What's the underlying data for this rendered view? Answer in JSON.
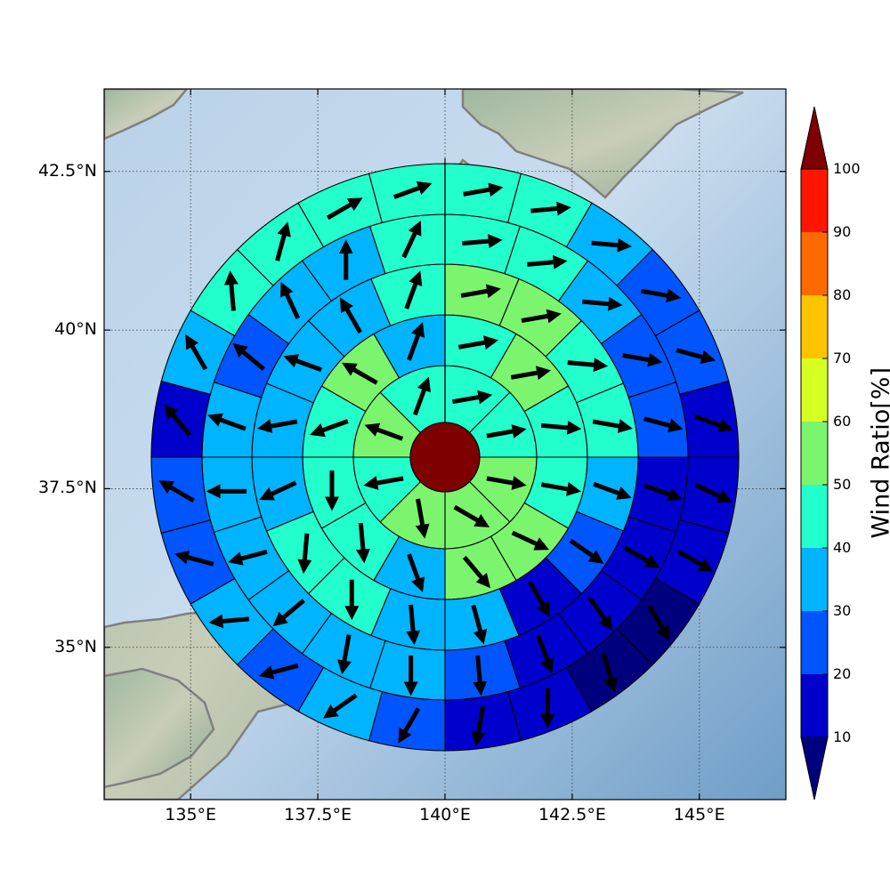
{
  "map": {
    "lon_ticks": [
      "135°E",
      "137.5°E",
      "140°E",
      "142.5°E",
      "145°E"
    ],
    "lat_ticks": [
      "42.5°N",
      "40°N",
      "37.5°N",
      "35°N"
    ],
    "lon_range": [
      133.3,
      146.7
    ],
    "lat_range": [
      32.6,
      43.8
    ],
    "lon_tick_values": [
      135,
      137.5,
      140,
      142.5,
      145
    ],
    "lat_tick_values": [
      42.5,
      40,
      37.5,
      35
    ],
    "grid": true
  },
  "colorbar": {
    "title": "Wind Ratio[%]",
    "ticks": [
      "10",
      "20",
      "30",
      "40",
      "50",
      "60",
      "70",
      "80",
      "90",
      "100"
    ],
    "levels": [
      10,
      20,
      30,
      40,
      50,
      60,
      70,
      80,
      90,
      100
    ],
    "colors": [
      "#0000cc",
      "#0055ff",
      "#00b4ff",
      "#22ffcc",
      "#7cf56e",
      "#d6ff22",
      "#ffc400",
      "#ff6a00",
      "#ff1500"
    ],
    "under_color": "#00007f",
    "over_color": "#7f0000"
  },
  "chart_data": {
    "type": "heatmap",
    "title": "",
    "center": {
      "lon": 140.0,
      "lat": 38.0
    },
    "eye_color": "#7f0000",
    "rings": [
      {
        "ring": 1,
        "values": [
          45,
          45,
          55,
          55,
          55,
          45,
          55,
          45
        ]
      },
      {
        "ring": 2,
        "values": [
          45,
          55,
          45,
          45,
          55,
          55,
          35,
          45,
          45,
          45,
          55,
          35
        ]
      },
      {
        "ring": 3,
        "values": [
          55,
          55,
          45,
          45,
          35,
          25,
          15,
          35,
          35,
          45,
          45,
          35,
          35,
          35,
          35,
          45
        ]
      },
      {
        "ring": 4,
        "values": [
          45,
          45,
          35,
          25,
          25,
          15,
          15,
          15,
          15,
          25,
          35,
          35,
          35,
          35,
          35,
          35,
          25,
          35,
          35,
          45
        ]
      },
      {
        "ring": 5,
        "values": [
          45,
          45,
          35,
          25,
          25,
          15,
          15,
          15,
          5,
          5,
          15,
          15,
          25,
          35,
          25,
          35,
          25,
          25,
          15,
          35,
          45,
          45,
          45,
          45
        ]
      }
    ],
    "arrows": [
      {
        "ring": 1,
        "dirs": [
          80,
          80,
          100,
          120,
          170,
          260,
          290,
          20
        ]
      },
      {
        "ring": 2,
        "dirs": [
          80,
          80,
          95,
          100,
          115,
          140,
          160,
          175,
          180,
          250,
          300,
          20
        ]
      },
      {
        "ring": 3,
        "dirs": [
          80,
          80,
          95,
          100,
          110,
          125,
          150,
          165,
          175,
          180,
          185,
          245,
          260,
          290,
          330,
          20
        ]
      },
      {
        "ring": 4,
        "dirs": [
          85,
          85,
          95,
          100,
          105,
          110,
          120,
          145,
          160,
          175,
          180,
          190,
          230,
          255,
          270,
          290,
          310,
          335,
          0,
          25
        ]
      },
      {
        "ring": 5,
        "dirs": [
          80,
          85,
          95,
          100,
          105,
          110,
          115,
          120,
          150,
          165,
          180,
          190,
          210,
          235,
          255,
          265,
          285,
          300,
          320,
          330,
          355,
          15,
          60,
          70
        ]
      }
    ]
  }
}
